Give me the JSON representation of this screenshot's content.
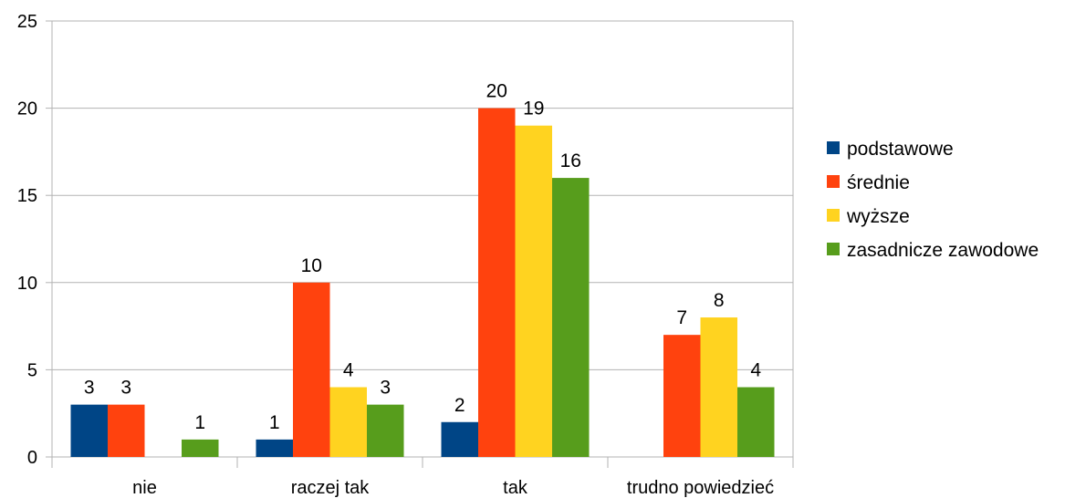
{
  "chart_data": {
    "type": "bar",
    "categories": [
      "nie",
      "raczej tak",
      "tak",
      "trudno powiedzieć"
    ],
    "series": [
      {
        "name": "podstawowe",
        "color": "#004586",
        "values": [
          3,
          1,
          2,
          null
        ]
      },
      {
        "name": "średnie",
        "color": "#ff420e",
        "values": [
          3,
          10,
          20,
          7
        ]
      },
      {
        "name": "wyższe",
        "color": "#ffd320",
        "values": [
          null,
          4,
          19,
          8
        ]
      },
      {
        "name": "zasadnicze zawodowe",
        "color": "#579d1c",
        "values": [
          1,
          3,
          16,
          4
        ]
      }
    ],
    "ylim": [
      0,
      25
    ],
    "yticks": [
      0,
      5,
      10,
      15,
      20,
      25
    ],
    "grid": true,
    "legend": "right",
    "data_labels": true
  }
}
